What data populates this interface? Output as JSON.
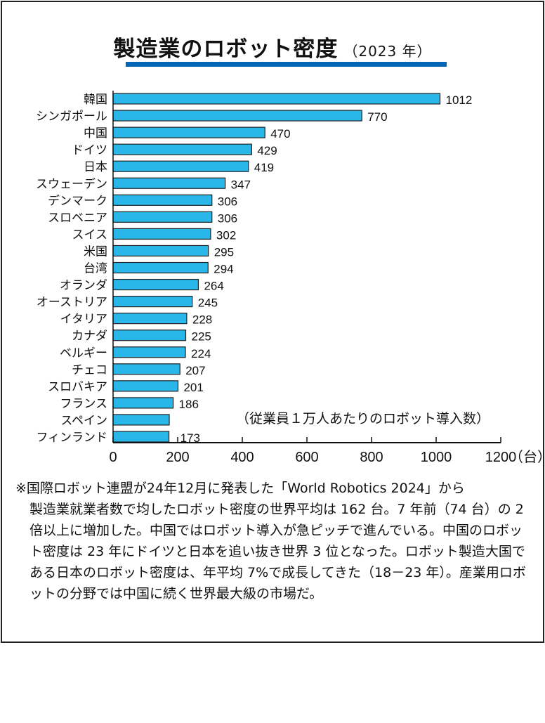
{
  "title": "製造業のロボット密度",
  "title_year": "（2023 年）",
  "chart_data": {
    "type": "bar",
    "orientation": "horizontal",
    "categories": [
      "韓国",
      "シンガポール",
      "中国",
      "ドイツ",
      "日本",
      "スウェーデン",
      "デンマーク",
      "スロベニア",
      "スイス",
      "米国",
      "台湾",
      "オランダ",
      "オーストリア",
      "イタリア",
      "カナダ",
      "ベルギー",
      "チェコ",
      "スロバキア",
      "フランス",
      "スペイン",
      "フィンランド"
    ],
    "values": [
      1012,
      770,
      470,
      429,
      419,
      347,
      306,
      306,
      302,
      295,
      294,
      264,
      245,
      228,
      225,
      224,
      207,
      201,
      186,
      174,
      173
    ],
    "data_labels": [
      "1012",
      "770",
      "470",
      "429",
      "419",
      "347",
      "306",
      "306",
      "302",
      "295",
      "294",
      "264",
      "245",
      "228",
      "225",
      "224",
      "207",
      "201",
      "186",
      "",
      "173"
    ],
    "xlim": [
      0,
      1200
    ],
    "xticks": [
      "0",
      "200",
      "400",
      "600",
      "800",
      "1000",
      "1200"
    ],
    "xunit": "（台）",
    "unit_note": "（従業員１万人あたりのロボット導入数）",
    "bar_color": "#29b6e8",
    "grid": false
  },
  "note": {
    "line1": "※国際ロボット連盟が24年12月に発表した「World Robotics 2024」から",
    "body": "製造業就業者数で均したロボット密度の世界平均は 162 台。7 年前（74 台）の 2 倍以上に増加した。中国ではロボット導入が急ピッチで進んでいる。中国のロボット密度は 23 年にドイツと日本を追い抜き世界 3 位となった。ロボット製造大国である日本のロボット密度は、年平均 7%で成長してきた（18－23 年）。産業用ロボットの分野では中国に続く世界最大級の市場だ。"
  }
}
